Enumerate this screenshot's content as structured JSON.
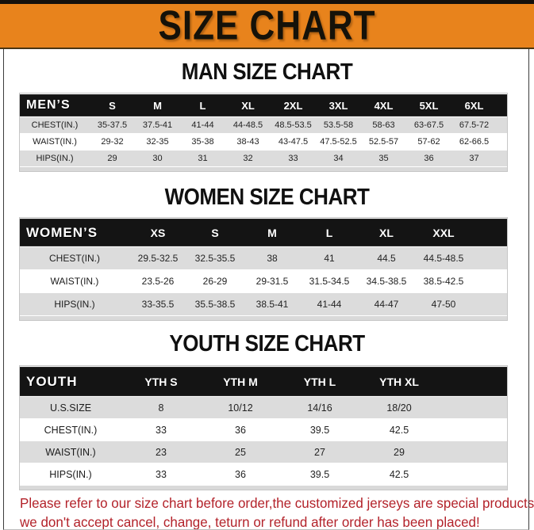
{
  "banner": {
    "title": "SIZE CHART"
  },
  "colors": {
    "banner_orange": "#e8831c",
    "top_bar_black": "#14100c",
    "table_header_black": "#141414",
    "row_gray": "#dcdcdc",
    "note_red": "#b3222a"
  },
  "sections": [
    {
      "heading": "MAN SIZE CHART",
      "table": {
        "header": [
          "MEN’S",
          "S",
          "M",
          "L",
          "XL",
          "2XL",
          "3XL",
          "4XL",
          "5XL",
          "6XL"
        ],
        "rows": [
          [
            "CHEST(IN.)",
            "35-37.5",
            "37.5-41",
            "41-44",
            "44-48.5",
            "48.5-53.5",
            "53.5-58",
            "58-63",
            "63-67.5",
            "67.5-72"
          ],
          [
            "WAIST(IN.)",
            "29-32",
            "32-35",
            "35-38",
            "38-43",
            "43-47.5",
            "47.5-52.5",
            "52.5-57",
            "57-62",
            "62-66.5"
          ],
          [
            "HIPS(IN.)",
            "29",
            "30",
            "31",
            "32",
            "33",
            "34",
            "35",
            "36",
            "37"
          ]
        ]
      }
    },
    {
      "heading": "WOMEN SIZE CHART",
      "table": {
        "header": [
          "WOMEN’S",
          "XS",
          "S",
          "M",
          "L",
          "XL",
          "XXL"
        ],
        "rows": [
          [
            "CHEST(IN.)",
            "29.5-32.5",
            "32.5-35.5",
            "38",
            "41",
            "44.5",
            "44.5-48.5"
          ],
          [
            "WAIST(IN.)",
            "23.5-26",
            "26-29",
            "29-31.5",
            "31.5-34.5",
            "34.5-38.5",
            "38.5-42.5"
          ],
          [
            "HIPS(IN.)",
            "33-35.5",
            "35.5-38.5",
            "38.5-41",
            "41-44",
            "44-47",
            "47-50"
          ]
        ]
      }
    },
    {
      "heading": "YOUTH SIZE CHART",
      "table": {
        "header": [
          "YOUTH",
          "YTH S",
          "YTH M",
          "YTH L",
          "YTH XL"
        ],
        "rows": [
          [
            "U.S.SIZE",
            "8",
            "10/12",
            "14/16",
            "18/20"
          ],
          [
            "CHEST(IN.)",
            "33",
            "36",
            "39.5",
            "42.5"
          ],
          [
            "WAIST(IN.)",
            "23",
            "25",
            "27",
            "29"
          ],
          [
            "HIPS(IN.)",
            "33",
            "36",
            "39.5",
            "42.5"
          ]
        ]
      }
    }
  ],
  "footer_note": {
    "line1": "Please refer to our size chart before order,the customized jerseys are special products,",
    "line2": "we don't accept cancel, change, teturn or refund after order has been placed!"
  }
}
